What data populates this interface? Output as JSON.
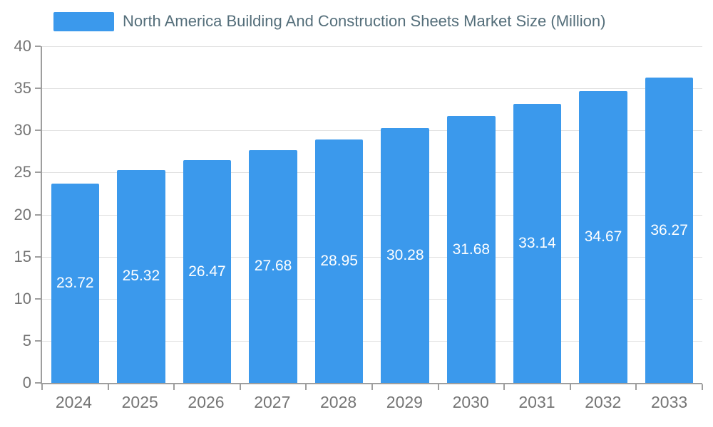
{
  "legend": {
    "label": "North America Building And Construction Sheets Market Size (Million)"
  },
  "chart_data": {
    "type": "bar",
    "title": "North America Building And Construction Sheets Market Size (Million)",
    "categories": [
      "2024",
      "2025",
      "2026",
      "2027",
      "2028",
      "2029",
      "2030",
      "2031",
      "2032",
      "2033"
    ],
    "values": [
      23.72,
      25.32,
      26.47,
      27.68,
      28.95,
      30.28,
      31.68,
      33.14,
      34.67,
      36.27
    ],
    "value_labels": [
      "23.72",
      "25.32",
      "26.47",
      "27.68",
      "28.95",
      "30.28",
      "31.68",
      "33.14",
      "34.67",
      "36.27"
    ],
    "xlabel": "",
    "ylabel": "",
    "ylim": [
      0,
      40
    ],
    "yticks": [
      0,
      5,
      10,
      15,
      20,
      25,
      30,
      35,
      40
    ],
    "grid": true,
    "legend_position": "top",
    "colors": {
      "bar": "#3b99ec",
      "bar_label": "#ffffff",
      "title": "#546e7a",
      "tick_label": "#757575",
      "axis_line": "#9e9e9e",
      "gridline": "#e0e0e0",
      "background": "#ffffff"
    }
  }
}
